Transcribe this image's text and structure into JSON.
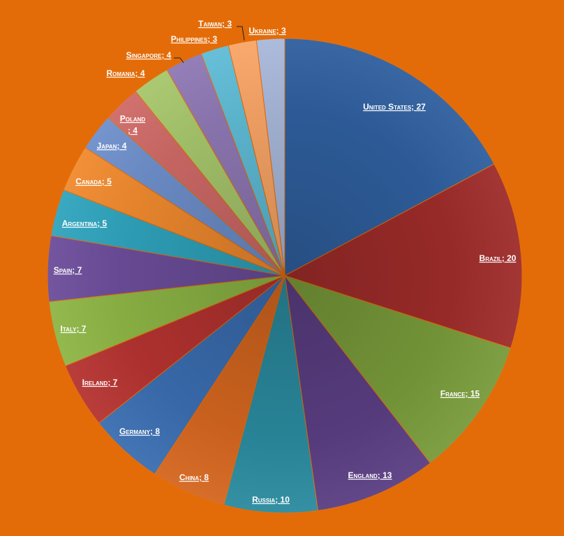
{
  "chart_data": {
    "type": "pie",
    "title": "",
    "start_angle_deg": 0,
    "direction": "clockwise",
    "background_color": "#e36c09",
    "slices": [
      {
        "name": "United States",
        "value": 27,
        "label": "United States; 27",
        "color": "#2f5f9e"
      },
      {
        "name": "Brazil",
        "value": 20,
        "label": "Brazil; 20",
        "color": "#9e2c2a"
      },
      {
        "name": "France",
        "value": 15,
        "label": "France; 15",
        "color": "#789a3a"
      },
      {
        "name": "England",
        "value": 13,
        "label": "England; 13",
        "color": "#5a3e82"
      },
      {
        "name": "Russia",
        "value": 10,
        "label": "Russia; 10",
        "color": "#2a8a9e"
      },
      {
        "name": "China",
        "value": 8,
        "label": "China; 8",
        "color": "#d4661f"
      },
      {
        "name": "Germany",
        "value": 8,
        "label": "Germany; 8",
        "color": "#3a6db0"
      },
      {
        "name": "Ireland",
        "value": 7,
        "label": "Ireland; 7",
        "color": "#b53330"
      },
      {
        "name": "Italy",
        "value": 7,
        "label": "Italy; 7",
        "color": "#8db545"
      },
      {
        "name": "Spain",
        "value": 7,
        "label": "Spain; 7",
        "color": "#6c4d9a"
      },
      {
        "name": "Argentina",
        "value": 5,
        "label": "Argentina; 5",
        "color": "#2fa4bd"
      },
      {
        "name": "Canada",
        "value": 5,
        "label": "Canada; 5",
        "color": "#f08a2e"
      },
      {
        "name": "Japan",
        "value": 4,
        "label": "Japan; 4",
        "color": "#6e8fcb"
      },
      {
        "name": "Poland",
        "value": 4,
        "label": "Poland\n; 4",
        "color": "#cf6a67"
      },
      {
        "name": "Romania",
        "value": 4,
        "label": "Romania; 4",
        "color": "#a7c66c"
      },
      {
        "name": "Singapore",
        "value": 4,
        "label": "Singapore; 4",
        "color": "#8f78b4"
      },
      {
        "name": "Philippines",
        "value": 3,
        "label": "Philippines; 3",
        "color": "#5fbcd6"
      },
      {
        "name": "Taiwan",
        "value": 3,
        "label": "Taiwan; 3",
        "color": "#f9a566"
      },
      {
        "name": "Ukraine",
        "value": 3,
        "label": "Ukraine; 3",
        "color": "#a9b8da"
      }
    ]
  }
}
